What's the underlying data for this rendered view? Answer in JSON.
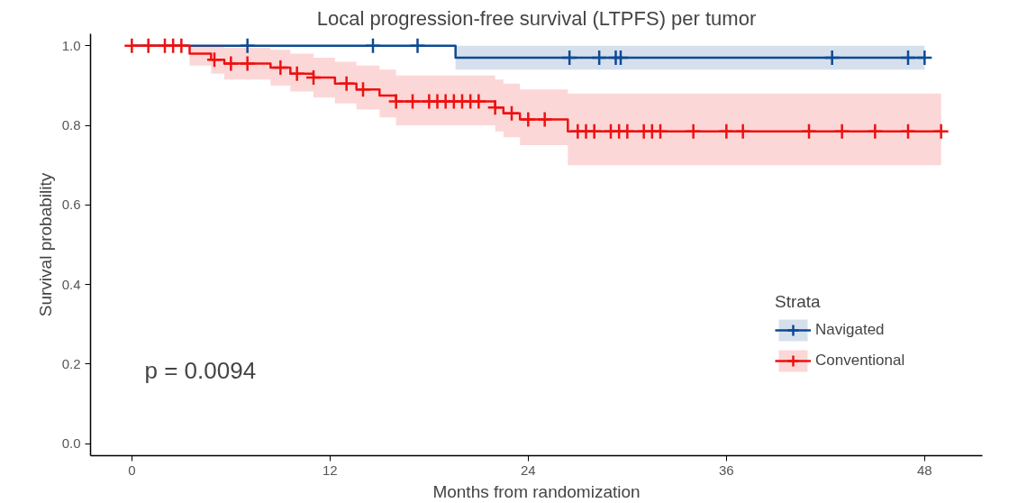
{
  "chart_data": {
    "type": "step",
    "title": "Local progression-free survival (LTPFS) per tumor",
    "xlabel": "Months from randomization",
    "ylabel": "Survival probability",
    "legend_title": "Strata",
    "series": [
      {
        "name": "Navigated",
        "color": "#0d4a94",
        "x": [
          0,
          19.6,
          48
        ],
        "values": [
          1.0,
          0.97,
          0.97
        ],
        "lower": [
          1.0,
          0.94,
          0.94
        ],
        "upper": [
          1.0,
          1.0,
          1.0
        ],
        "marker": "none"
      },
      {
        "name": "Conventional",
        "color": "#ee1111",
        "x": [
          0,
          3.5,
          4.8,
          5.6,
          8.4,
          9.6,
          11,
          12.3,
          13.6,
          15,
          16,
          22,
          22.5,
          23.5,
          26.4,
          49
        ],
        "values": [
          1.0,
          0.98,
          0.965,
          0.955,
          0.945,
          0.93,
          0.92,
          0.905,
          0.89,
          0.875,
          0.86,
          0.845,
          0.83,
          0.815,
          0.785,
          0.785
        ],
        "lower": [
          1.0,
          0.95,
          0.93,
          0.915,
          0.9,
          0.885,
          0.87,
          0.855,
          0.84,
          0.82,
          0.8,
          0.785,
          0.77,
          0.75,
          0.7,
          0.7
        ],
        "upper": [
          1.0,
          1.0,
          1.0,
          0.995,
          0.99,
          0.98,
          0.97,
          0.96,
          0.95,
          0.94,
          0.925,
          0.915,
          0.905,
          0.89,
          0.88,
          0.88
        ],
        "marker": "none"
      },
      {
        "type": "scatter",
        "marker": "cross",
        "color": "#0d4a94",
        "x": [
          7,
          14.6,
          17.3,
          26.5,
          28.3,
          29.3,
          29.6,
          42.4,
          47,
          48
        ],
        "values": [
          1.0,
          1.0,
          1.0,
          0.97,
          0.97,
          0.97,
          0.97,
          0.97,
          0.97,
          0.97
        ]
      },
      {
        "type": "scatter",
        "marker": "cross",
        "color": "#ee1111",
        "x": [
          0,
          1,
          2,
          2.5,
          3,
          5,
          6,
          7,
          9,
          10,
          11,
          13,
          14,
          16,
          17,
          18,
          18.5,
          19,
          19.5,
          20,
          20.5,
          21,
          22,
          23,
          24,
          25,
          27,
          27.5,
          28,
          29,
          29.5,
          30,
          31,
          31.5,
          32,
          34,
          36,
          37,
          41,
          43,
          45,
          47,
          49
        ],
        "values": [
          1.0,
          1.0,
          1.0,
          1.0,
          1.0,
          0.965,
          0.955,
          0.955,
          0.945,
          0.93,
          0.92,
          0.905,
          0.89,
          0.86,
          0.86,
          0.86,
          0.86,
          0.86,
          0.86,
          0.86,
          0.86,
          0.86,
          0.845,
          0.83,
          0.815,
          0.815,
          0.785,
          0.785,
          0.785,
          0.785,
          0.785,
          0.785,
          0.785,
          0.785,
          0.785,
          0.785,
          0.785,
          0.785,
          0.785,
          0.785,
          0.785,
          0.785,
          0.785
        ]
      }
    ],
    "xlim": [
      -2.5,
      51.5
    ],
    "xticks": [
      0,
      12,
      24,
      36,
      48
    ],
    "ylim": [
      -0.03,
      1.03
    ],
    "yticks": [
      {
        "value": 0,
        "label": "0.0"
      },
      0.2,
      0.4,
      0.6,
      0.8,
      {
        "value": 1,
        "label": "1.0"
      }
    ],
    "annotations": [
      "p = 0.0094"
    ],
    "legend": "right",
    "grid": false,
    "line_style": "solid"
  }
}
